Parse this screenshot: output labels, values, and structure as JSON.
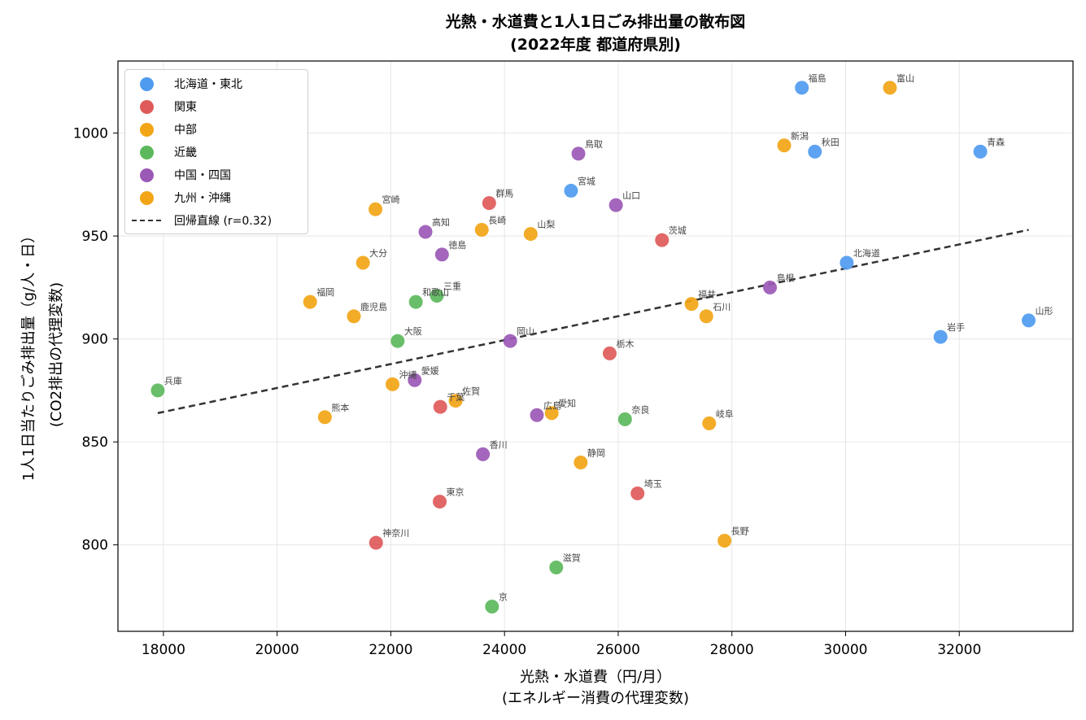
{
  "chart_data": {
    "type": "scatter",
    "title": "光熱・水道費と1人1日ごみ排出量の散布図",
    "subtitle": "(2022年度 都道府県別)",
    "xlabel": "光熱・水道費（円/月）",
    "xlabel_sub": "(エネルギー消費の代理変数)",
    "ylabel": "1人1日当たりごみ排出量（g/人・日）",
    "ylabel_sub": "(CO2排出の代理変数)",
    "xlim": [
      17200,
      34000
    ],
    "ylim": [
      758,
      1035
    ],
    "xticks": [
      18000,
      20000,
      22000,
      24000,
      26000,
      28000,
      30000,
      32000
    ],
    "yticks": [
      800,
      850,
      900,
      950,
      1000
    ],
    "grid": true,
    "legend_position": "top-left",
    "series": [
      {
        "name": "北海道・東北",
        "color": "#4f9bf0",
        "points": [
          {
            "label": "北海道",
            "x": 30020,
            "y": 937
          },
          {
            "label": "青森",
            "x": 32370,
            "y": 991
          },
          {
            "label": "岩手",
            "x": 31670,
            "y": 901
          },
          {
            "label": "宮城",
            "x": 25170,
            "y": 972
          },
          {
            "label": "秋田",
            "x": 29460,
            "y": 991
          },
          {
            "label": "山形",
            "x": 33220,
            "y": 909
          },
          {
            "label": "福島",
            "x": 29230,
            "y": 1022
          }
        ]
      },
      {
        "name": "関東",
        "color": "#e05a5a",
        "points": [
          {
            "label": "茨城",
            "x": 26770,
            "y": 948
          },
          {
            "label": "栃木",
            "x": 25850,
            "y": 893
          },
          {
            "label": "群馬",
            "x": 23730,
            "y": 966
          },
          {
            "label": "埼玉",
            "x": 26340,
            "y": 825
          },
          {
            "label": "千葉",
            "x": 22870,
            "y": 867
          },
          {
            "label": "東京",
            "x": 22860,
            "y": 821
          },
          {
            "label": "神奈川",
            "x": 21740,
            "y": 801
          }
        ]
      },
      {
        "name": "中部",
        "color": "#f2a516",
        "points": [
          {
            "label": "新潟",
            "x": 28920,
            "y": 994
          },
          {
            "label": "富山",
            "x": 30780,
            "y": 1022
          },
          {
            "label": "石川",
            "x": 27550,
            "y": 911
          },
          {
            "label": "福井",
            "x": 27290,
            "y": 917
          },
          {
            "label": "山梨",
            "x": 24460,
            "y": 951
          },
          {
            "label": "長野",
            "x": 27870,
            "y": 802
          },
          {
            "label": "岐阜",
            "x": 27600,
            "y": 859
          },
          {
            "label": "静岡",
            "x": 25340,
            "y": 840
          },
          {
            "label": "愛知",
            "x": 24830,
            "y": 864
          }
        ]
      },
      {
        "name": "近畿",
        "color": "#5cb85c",
        "points": [
          {
            "label": "三重",
            "x": 22810,
            "y": 921
          },
          {
            "label": "滋賀",
            "x": 24910,
            "y": 789
          },
          {
            "label": "京",
            "x": 23780,
            "y": 770
          },
          {
            "label": "大阪",
            "x": 22120,
            "y": 899
          },
          {
            "label": "兵庫",
            "x": 17900,
            "y": 875
          },
          {
            "label": "奈良",
            "x": 26120,
            "y": 861
          },
          {
            "label": "和歌山",
            "x": 22440,
            "y": 918
          }
        ]
      },
      {
        "name": "中国・四国",
        "color": "#9b59b6",
        "points": [
          {
            "label": "鳥取",
            "x": 25300,
            "y": 990
          },
          {
            "label": "島根",
            "x": 28670,
            "y": 925
          },
          {
            "label": "岡山",
            "x": 24100,
            "y": 899
          },
          {
            "label": "広島",
            "x": 24570,
            "y": 863
          },
          {
            "label": "山口",
            "x": 25960,
            "y": 965
          },
          {
            "label": "徳島",
            "x": 22900,
            "y": 941
          },
          {
            "label": "香川",
            "x": 23620,
            "y": 844
          },
          {
            "label": "愛媛",
            "x": 22420,
            "y": 880
          },
          {
            "label": "高知",
            "x": 22610,
            "y": 952
          }
        ]
      },
      {
        "name": "九州・沖縄",
        "color": "#f2a516",
        "points": [
          {
            "label": "福岡",
            "x": 20580,
            "y": 918
          },
          {
            "label": "佐賀",
            "x": 23140,
            "y": 870
          },
          {
            "label": "長崎",
            "x": 23600,
            "y": 953
          },
          {
            "label": "熊本",
            "x": 20840,
            "y": 862
          },
          {
            "label": "大分",
            "x": 21510,
            "y": 937
          },
          {
            "label": "宮崎",
            "x": 21730,
            "y": 963
          },
          {
            "label": "鹿児島",
            "x": 21350,
            "y": 911
          },
          {
            "label": "沖縄",
            "x": 22030,
            "y": 878
          }
        ]
      }
    ],
    "regression": {
      "name": "回帰直線 (r=0.32)",
      "x": [
        17900,
        33220
      ],
      "y": [
        864,
        953
      ],
      "color": "#333333"
    }
  }
}
